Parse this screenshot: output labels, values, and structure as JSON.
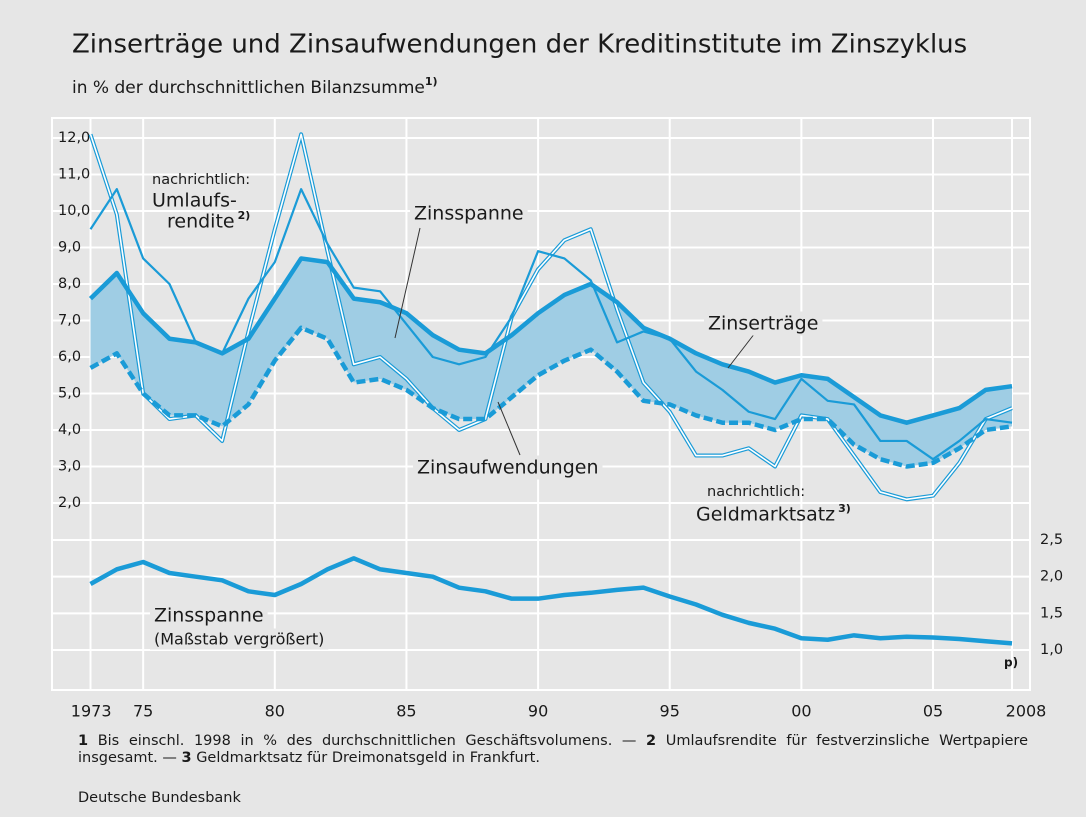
{
  "chart_data": {
    "type": "line",
    "title": "Zinserträge und Zinsaufwendungen der Kreditinstitute im Zinszyklus",
    "subtitle": "in % der durchschnittlichen Bilanzsumme",
    "subtitle_note": "1)",
    "x": [
      1973,
      1974,
      1975,
      1976,
      1977,
      1978,
      1979,
      1980,
      1981,
      1982,
      1983,
      1984,
      1985,
      1986,
      1987,
      1988,
      1989,
      1990,
      1991,
      1992,
      1993,
      1994,
      1995,
      1996,
      1997,
      1998,
      1999,
      2000,
      2001,
      2002,
      2003,
      2004,
      2005,
      2006,
      2007,
      2008
    ],
    "xlim": [
      1973,
      2008
    ],
    "xticks": [
      1973,
      {
        "value": 1975,
        "label": "75"
      },
      {
        "value": 1980,
        "label": "80"
      },
      {
        "value": 1985,
        "label": "85"
      },
      {
        "value": 1990,
        "label": "90"
      },
      {
        "value": 1995,
        "label": "95"
      },
      {
        "value": 2000,
        "label": "00"
      },
      {
        "value": 2005,
        "label": "05"
      },
      2008
    ],
    "x_note": "p)",
    "ylim": [
      2,
      12
    ],
    "yticks": [
      {
        "value": 2,
        "label": "2,0"
      },
      {
        "value": 3,
        "label": "3,0"
      },
      {
        "value": 4,
        "label": "4,0"
      },
      {
        "value": 5,
        "label": "5,0"
      },
      {
        "value": 6,
        "label": "6,0"
      },
      {
        "value": 7,
        "label": "7,0"
      },
      {
        "value": 8,
        "label": "8,0"
      },
      {
        "value": 9,
        "label": "9,0"
      },
      {
        "value": 10,
        "label": "10,0"
      },
      {
        "value": 11,
        "label": "11,0"
      },
      {
        "value": 12,
        "label": "12,0"
      }
    ],
    "y2lim": [
      1,
      2.5
    ],
    "y2ticks": [
      {
        "value": 1,
        "label": "1,0"
      },
      {
        "value": 1.5,
        "label": "1,5"
      },
      {
        "value": 2,
        "label": "2,0"
      },
      {
        "value": 2.5,
        "label": "2,5"
      }
    ],
    "grid": true,
    "fill_between": {
      "series": [
        0,
        1
      ],
      "color": "#9fcde4"
    },
    "series": [
      {
        "name": "Zinserträge",
        "color": "#1a9bd7",
        "style": "thick",
        "values": [
          7.6,
          8.3,
          7.2,
          6.5,
          6.4,
          6.1,
          6.5,
          7.6,
          8.7,
          8.6,
          7.6,
          7.5,
          7.2,
          6.6,
          6.2,
          6.1,
          6.6,
          7.2,
          7.7,
          8.0,
          7.5,
          6.8,
          6.5,
          6.1,
          5.8,
          5.6,
          5.3,
          5.5,
          5.4,
          4.9,
          4.4,
          4.2,
          4.4,
          4.6,
          5.1,
          5.2
        ]
      },
      {
        "name": "Zinsaufwendungen",
        "color": "#1a9bd7",
        "style": "dashed",
        "values": [
          5.7,
          6.1,
          5.0,
          4.4,
          4.4,
          4.1,
          4.7,
          5.9,
          6.8,
          6.5,
          5.3,
          5.4,
          5.1,
          4.6,
          4.3,
          4.3,
          4.9,
          5.5,
          5.9,
          6.2,
          5.6,
          4.8,
          4.7,
          4.4,
          4.2,
          4.2,
          4.0,
          4.3,
          4.3,
          3.6,
          3.2,
          3.0,
          3.1,
          3.5,
          4.0,
          4.1
        ]
      },
      {
        "color": "#1a9bd7",
        "style": "thin",
        "values": [
          9.5,
          10.6,
          8.7,
          8.0,
          6.4,
          6.1,
          7.6,
          8.6,
          10.6,
          9.1,
          7.9,
          7.8,
          6.9,
          6.0,
          5.8,
          6.0,
          7.1,
          8.9,
          8.7,
          8.1,
          6.4,
          6.7,
          6.5,
          5.6,
          5.1,
          4.5,
          4.3,
          5.4,
          4.8,
          4.7,
          3.7,
          3.7,
          3.2,
          3.7,
          4.3,
          4.2
        ]
      },
      {
        "color": "#1a9bd7",
        "style": "double",
        "values": [
          12.1,
          9.9,
          5.0,
          4.3,
          4.4,
          3.7,
          6.7,
          9.5,
          12.1,
          8.9,
          5.8,
          6.0,
          5.4,
          4.6,
          4.0,
          4.3,
          7.1,
          8.4,
          9.2,
          9.5,
          7.3,
          5.3,
          4.5,
          3.3,
          3.3,
          3.5,
          3.0,
          4.4,
          4.3,
          3.3,
          2.3,
          2.1,
          2.2,
          3.1,
          4.3,
          4.6
        ]
      },
      {
        "color": "#1a9bd7",
        "style": "thick",
        "axis": "y2",
        "values": [
          1.9,
          2.1,
          2.2,
          2.05,
          2.0,
          1.95,
          1.8,
          1.75,
          1.9,
          2.1,
          2.25,
          2.1,
          2.05,
          2.0,
          1.85,
          1.8,
          1.7,
          1.7,
          1.75,
          1.78,
          1.82,
          1.85,
          1.73,
          1.62,
          1.48,
          1.37,
          1.29,
          1.16,
          1.14,
          1.2,
          1.16,
          1.18,
          1.17,
          1.15,
          1.12,
          1.09
        ]
      }
    ],
    "annotations": [
      {
        "text": "nachrichtlich:"
      },
      {
        "text": "Umlaufs-"
      },
      {
        "text": "rendite",
        "note": "2)"
      },
      {
        "text": "Zinsspanne"
      },
      {
        "text": "nachrichtlich:"
      },
      {
        "text": "Geldmarktsatz",
        "note": "3)"
      },
      {
        "text": "Zinsspanne"
      },
      {
        "text": "(Maßstab vergrößert)"
      }
    ],
    "footnotes": [
      {
        "number": "1",
        "text": "Bis einschl. 1998 in % des durchschnittlichen Geschäftsvolumens. —"
      },
      {
        "number": "2",
        "text": "Umlaufsrendite für festverzinsliche Wertpapiere insgesamt. —"
      },
      {
        "number": "3",
        "text": "Geldmarktsatz für Dreimonatsgeld in Frankfurt."
      }
    ],
    "source": "Deutsche Bundesbank"
  }
}
